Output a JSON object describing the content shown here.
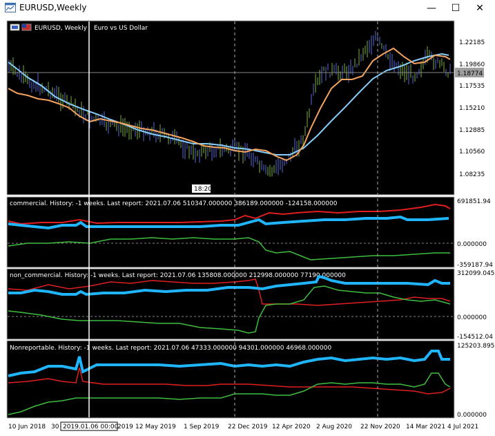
{
  "window": {
    "title": "EURUSD,Weekly",
    "minimize_glyph": "—",
    "maximize_glyph": "☐",
    "close_glyph": "✕"
  },
  "main_chart": {
    "header_symbol": "EURUSD, Weekly",
    "header_description": "Euro vs US Dollar",
    "current_price": "1.18774",
    "time_marker": "18:20",
    "price_labels": [
      "1.22185",
      "1.19860",
      "1.17535",
      "1.15210",
      "1.12885",
      "1.10560",
      "1.08235"
    ]
  },
  "panes": [
    {
      "header": "commercial. History: -1 weeks. Last report: 2021.07.06    510347.000000 386189.000000 -124158.000000",
      "labels": [
        "691851.94",
        "0.000000",
        "-359187.94"
      ]
    },
    {
      "header": "non_commercial. History: -1 weeks. Last report: 2021.07.06    135808.000000 212998.000000 77190.000000",
      "labels": [
        "312099.045",
        "0.000000",
        "-154512.04"
      ]
    },
    {
      "header": "Nonreportable. History: -1 weeks. Last report: 2021.07.06    47333.000000 94301.000000 46968.000000",
      "labels": [
        "125203.895",
        "0.000000"
      ]
    }
  ],
  "time_axis": {
    "labels": [
      "10 Jun 2018",
      "30 S",
      "2019",
      "12 May 2019",
      "1 Sep 2019",
      "22 Dec 2019",
      "12 Apr 2020",
      "2 Aug 2020",
      "22 Nov 2020",
      "14 Mar 2021",
      "4 Jul 2021"
    ],
    "crosshair_label": "2019.01.06 00:00"
  },
  "colors": {
    "background": "#000000",
    "bull_bars": "#7cb342",
    "bear_bars": "#5a6bd6",
    "ma_fast": "#f4a460",
    "ma_slow": "#87cefa",
    "series_blue": "#1fb5ff",
    "series_red": "#e31e1e",
    "series_green": "#3fbf3f"
  }
}
